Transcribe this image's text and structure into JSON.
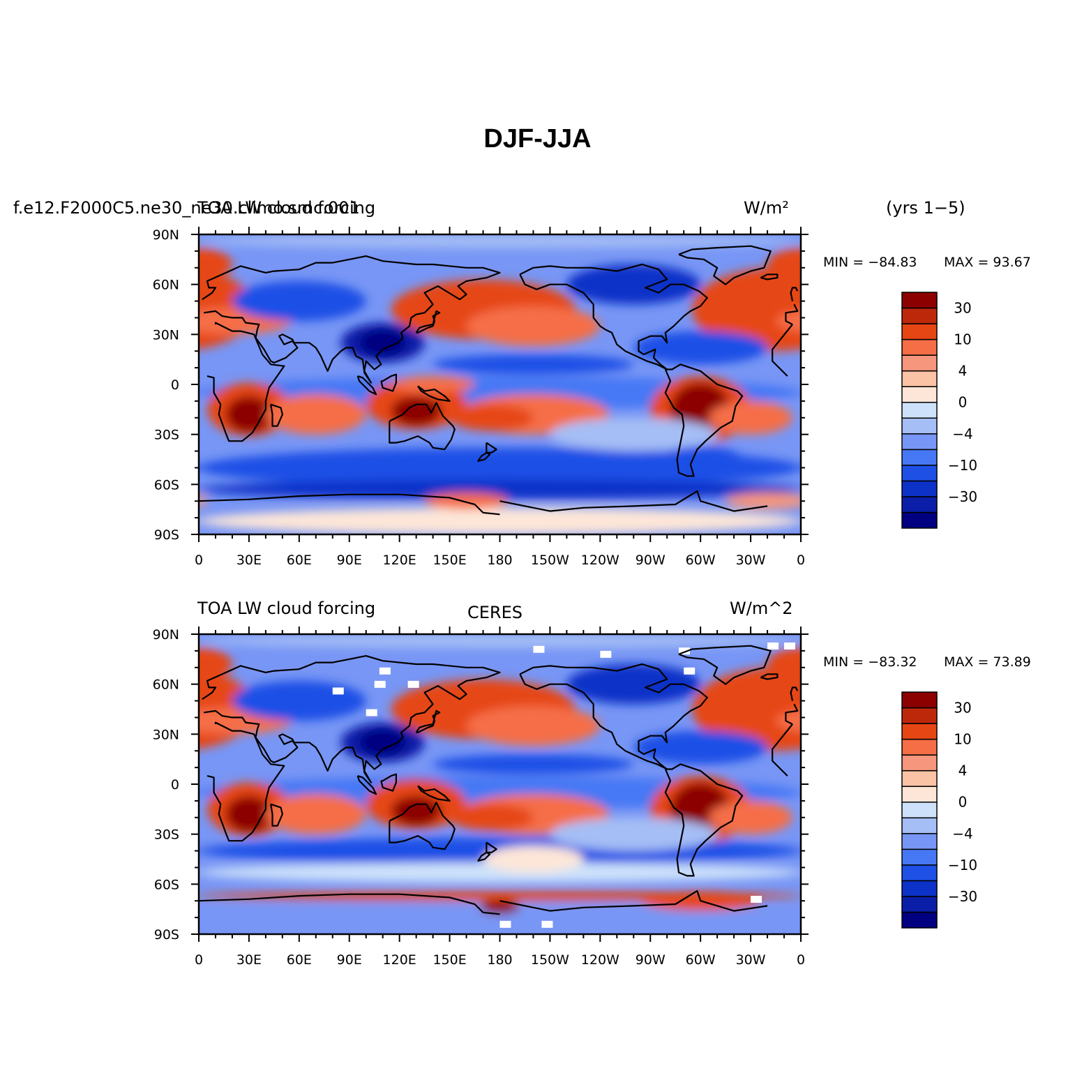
{
  "title": "DJF-JJA",
  "palette": [
    "#000080",
    "#0a1ea8",
    "#0c32c8",
    "#1e50e6",
    "#4678f5",
    "#7896f5",
    "#a5bef5",
    "#cde2fa",
    "#fde6d8",
    "#fac3a5",
    "#f5967d",
    "#f56e46",
    "#e64614",
    "#be280a",
    "#8c0000"
  ],
  "colorbar_labels": [
    {
      "level": 13,
      "text": "30"
    },
    {
      "level": 11,
      "text": "10"
    },
    {
      "level": 9,
      "text": "4"
    },
    {
      "level": 7,
      "text": "0"
    },
    {
      "level": 5,
      "text": "−4"
    },
    {
      "level": 3,
      "text": "−10"
    },
    {
      "level": 1,
      "text": "−30"
    }
  ],
  "lon_ticks": [
    "0",
    "30E",
    "60E",
    "90E",
    "120E",
    "150E",
    "180",
    "150W",
    "120W",
    "90W",
    "60W",
    "30W",
    "0"
  ],
  "lat_ticks": [
    "90N",
    "60N",
    "30N",
    "0",
    "30S",
    "60S",
    "90S"
  ],
  "panels": [
    {
      "left_label": "f.e12.F2000C5.ne30_ne30.climo.smc.001",
      "center_label": "TOA LW cloud forcing",
      "right_label": "W/m²",
      "side_label": "(yrs 1−5)",
      "min_text": "MIN = −84.83",
      "max_text": "MAX =  93.67"
    },
    {
      "left_label": "TOA LW cloud forcing",
      "center_label": "CERES",
      "right_label": "W/m^2",
      "side_label": "",
      "min_text": "MIN = −83.32",
      "max_text": "MAX =  73.89"
    }
  ]
}
